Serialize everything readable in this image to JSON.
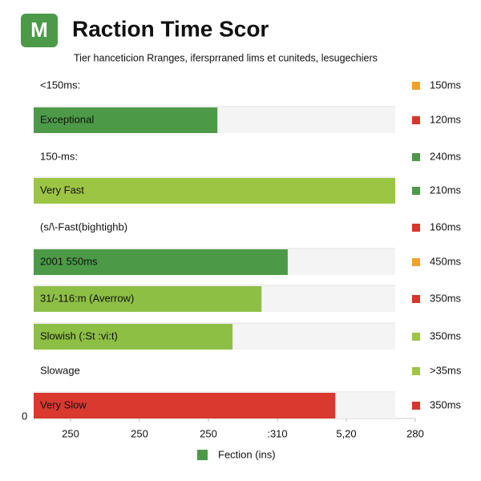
{
  "logo": "M",
  "chart_data": {
    "type": "bar",
    "orientation": "horizontal",
    "title": "Raction Time Scor",
    "subtitle": "Tier hanceticion Rranges, ifersprraned lims et cuniteds, lesugechiers",
    "categories": [
      "<150ms:",
      "Exceptional",
      "150-ms:",
      "Very Fast",
      "(s/\\-Fast(bightighb)",
      "2001 550ms",
      "31/-116:m (Averrow)",
      "Slowish (:St :vi:t)",
      "Slowage",
      "Very Slow"
    ],
    "values": [
      null,
      3.13,
      null,
      5.71,
      null,
      4.15,
      3.77,
      3.35,
      null,
      4.84
    ],
    "colors": [
      null,
      "#4c9a47",
      null,
      "#9dc544",
      null,
      "#4c9a47",
      "#8dbf45",
      "#8dbf45",
      null,
      "#d9392f"
    ],
    "side_labels": [
      "150ms",
      "120ms",
      "240ms",
      "210ms",
      "160ms",
      "450ms",
      "350ms",
      "350ms",
      ">35ms",
      "350ms"
    ],
    "side_colors": [
      "#f2a227",
      "#d9352c",
      "#4c9a47",
      "#4c9a47",
      "#d9352c",
      "#f2a227",
      "#d9352c",
      "#9dc544",
      "#9dc544",
      "#d9352c"
    ],
    "origin_label": "0",
    "xlim": [
      0.5,
      6.5
    ],
    "xticks": [
      {
        "value": 1,
        "label": "250"
      },
      {
        "value": 2,
        "label": "250"
      },
      {
        "value": 3,
        "label": "250"
      },
      {
        "value": 4,
        "label": ":310"
      },
      {
        "value": 5,
        "label": "5,20"
      },
      {
        "value": 6,
        "label": "280"
      }
    ],
    "legend": {
      "label": "Fection (ins)",
      "color": "#4c9a47"
    }
  }
}
